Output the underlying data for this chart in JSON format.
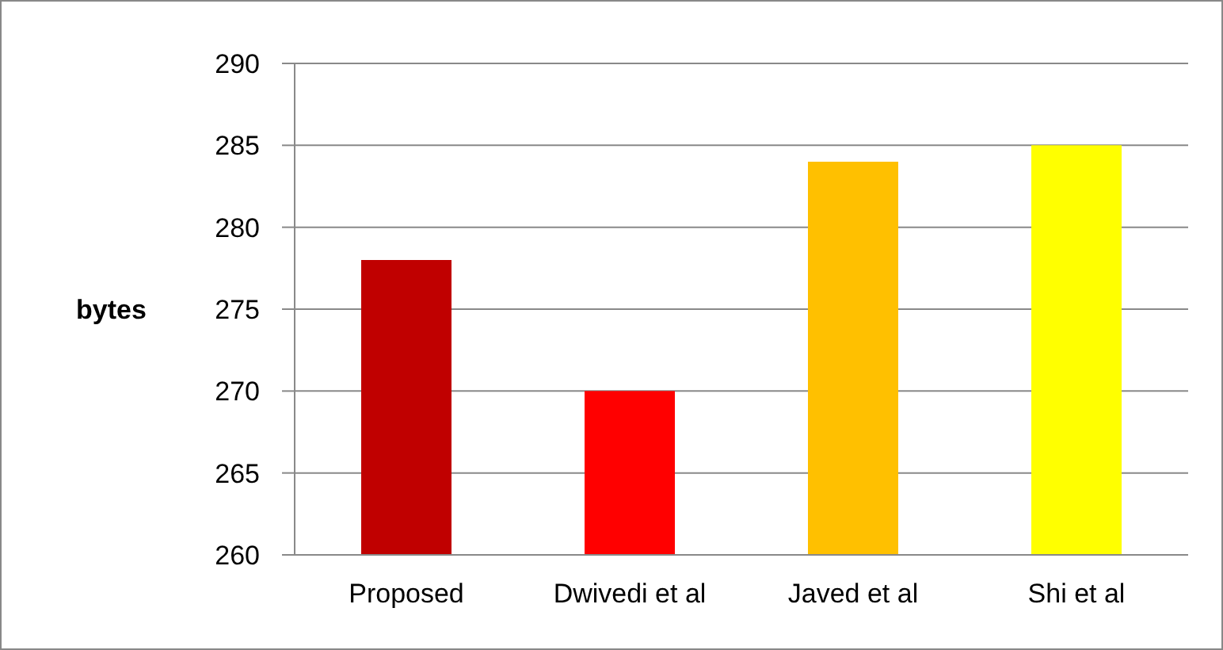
{
  "chart_data": {
    "type": "bar",
    "ylabel": "bytes",
    "categories": [
      "Proposed",
      "Dwivedi et al",
      "Javed et al",
      "Shi et al"
    ],
    "values": [
      278,
      270,
      284,
      285
    ],
    "colors": [
      "#c00000",
      "#ff0000",
      "#ffc000",
      "#ffff00"
    ],
    "ylim": [
      260,
      290
    ],
    "yticks": [
      260,
      265,
      270,
      275,
      280,
      285,
      290
    ],
    "grid": "y",
    "legend": false
  }
}
